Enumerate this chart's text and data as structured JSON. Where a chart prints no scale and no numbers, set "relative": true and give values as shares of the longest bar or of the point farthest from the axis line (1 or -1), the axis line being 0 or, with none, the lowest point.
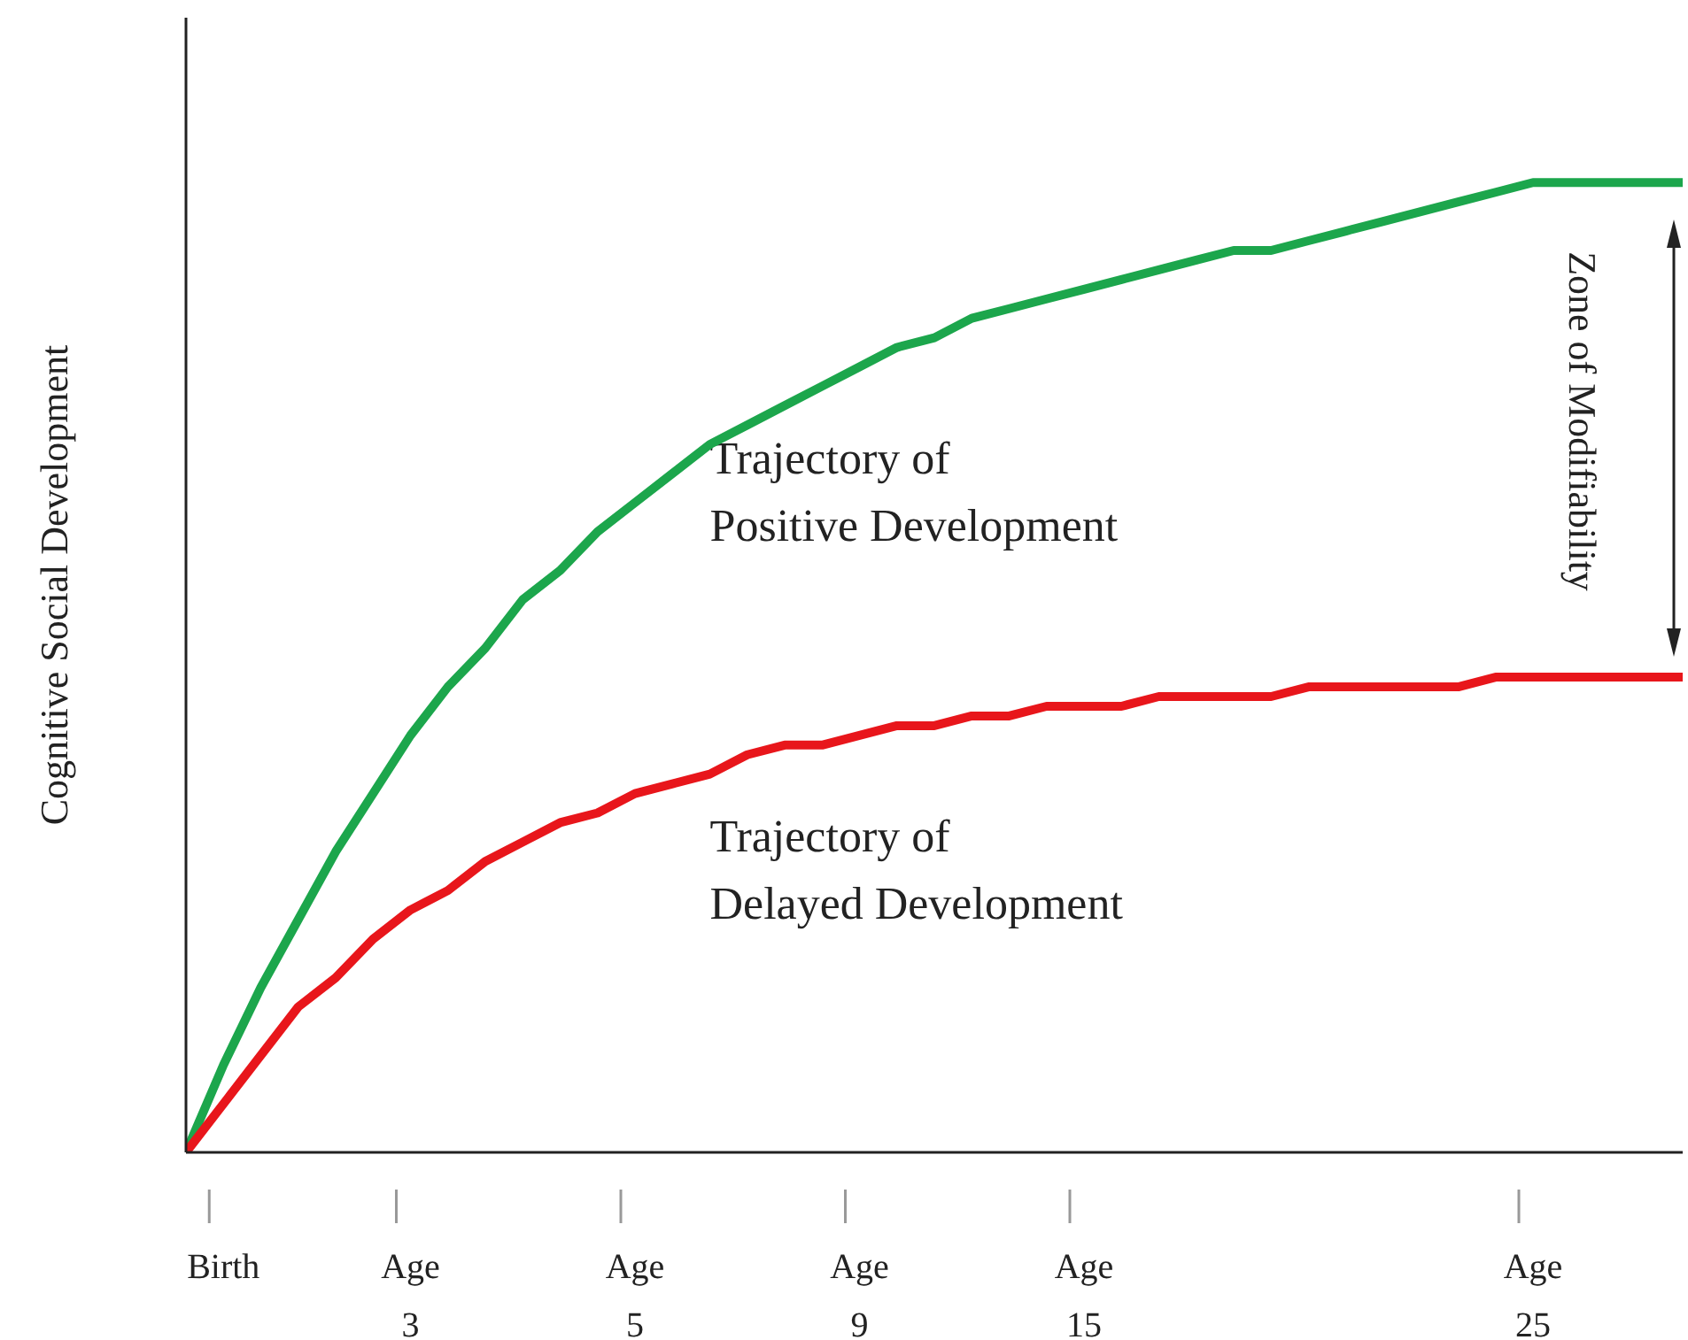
{
  "chart_data": {
    "type": "line",
    "relative": true,
    "ylabel": "Cognitive Social Development",
    "marker": "none",
    "categories": [
      null,
      "Birth",
      null,
      null,
      null,
      null,
      "Age 3",
      null,
      null,
      null,
      null,
      null,
      "Age 5",
      null,
      null,
      null,
      null,
      null,
      "Age 9",
      null,
      null,
      null,
      null,
      null,
      "Age 15",
      null,
      null,
      null,
      null,
      null,
      null,
      null,
      null,
      null,
      null,
      null,
      "Age 25",
      null,
      null,
      null,
      null
    ],
    "series": [
      {
        "color": "#1ca64c",
        "values": [
          0,
          0.09,
          0.17,
          0.24,
          0.31,
          0.37,
          0.43,
          0.48,
          0.52,
          0.57,
          0.6,
          0.64,
          0.67,
          0.7,
          0.73,
          0.75,
          0.77,
          0.79,
          0.81,
          0.83,
          0.84,
          0.86,
          0.87,
          0.88,
          0.89,
          0.9,
          0.91,
          0.92,
          0.93,
          0.93,
          0.94,
          0.95,
          0.96,
          0.97,
          0.98,
          0.99,
          1,
          1,
          1,
          1,
          1
        ]
      },
      {
        "color": "#e8161b",
        "values": [
          0,
          0.05,
          0.1,
          0.15,
          0.18,
          0.22,
          0.25,
          0.27,
          0.3,
          0.32,
          0.34,
          0.35,
          0.37,
          0.38,
          0.39,
          0.41,
          0.42,
          0.42,
          0.43,
          0.44,
          0.44,
          0.45,
          0.45,
          0.46,
          0.46,
          0.46,
          0.47,
          0.47,
          0.47,
          0.47,
          0.48,
          0.48,
          0.48,
          0.48,
          0.48,
          0.49,
          0.49,
          0.49,
          0.49,
          0.49,
          0.49
        ]
      }
    ],
    "annotations": [
      "Zone of Modifiability",
      "Trajectory of\nPositive Development",
      "Trajectory of\nDelayed Development"
    ]
  }
}
